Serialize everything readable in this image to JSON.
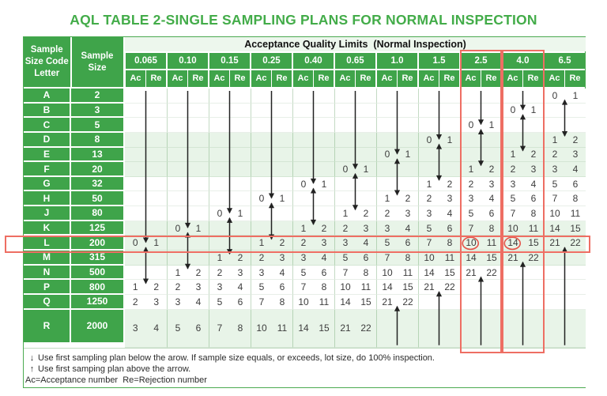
{
  "title": "AQL TABLE 2-SINGLE SAMPLING PLANS FOR NORMAL INSPECTION",
  "table": {
    "header": {
      "col1": "Sample\nSize Code\nLetter",
      "col2": "Sample\nSize",
      "aql_title": "Acceptance Quality Limits  (Normal Inspection)",
      "aql_levels": [
        "0.065",
        "0.10",
        "0.15",
        "0.25",
        "0.40",
        "0.65",
        "1.0",
        "1.5",
        "2.5",
        "4.0",
        "6.5"
      ],
      "ac_label": "Ac",
      "re_label": "Re"
    },
    "rows": [
      {
        "letter": "A",
        "size": "2",
        "cells": [
          null,
          null,
          null,
          null,
          null,
          null,
          null,
          null,
          null,
          null,
          [
            0,
            1
          ]
        ]
      },
      {
        "letter": "B",
        "size": "3",
        "cells": [
          null,
          null,
          null,
          null,
          null,
          null,
          null,
          null,
          null,
          [
            0,
            1
          ],
          null
        ]
      },
      {
        "letter": "C",
        "size": "5",
        "cells": [
          null,
          null,
          null,
          null,
          null,
          null,
          null,
          null,
          [
            0,
            1
          ],
          null,
          null
        ]
      },
      {
        "letter": "D",
        "size": "8",
        "cells": [
          null,
          null,
          null,
          null,
          null,
          null,
          null,
          [
            0,
            1
          ],
          null,
          null,
          [
            1,
            2
          ]
        ]
      },
      {
        "letter": "E",
        "size": "13",
        "cells": [
          null,
          null,
          null,
          null,
          null,
          null,
          [
            0,
            1
          ],
          null,
          null,
          [
            1,
            2
          ],
          [
            2,
            3
          ]
        ]
      },
      {
        "letter": "F",
        "size": "20",
        "cells": [
          null,
          null,
          null,
          null,
          null,
          [
            0,
            1
          ],
          null,
          null,
          [
            1,
            2
          ],
          [
            2,
            3
          ],
          [
            3,
            4
          ]
        ]
      },
      {
        "letter": "G",
        "size": "32",
        "cells": [
          null,
          null,
          null,
          null,
          [
            0,
            1
          ],
          null,
          null,
          [
            1,
            2
          ],
          [
            2,
            3
          ],
          [
            3,
            4
          ],
          [
            5,
            6
          ]
        ]
      },
      {
        "letter": "H",
        "size": "50",
        "cells": [
          null,
          null,
          null,
          [
            0,
            1
          ],
          null,
          null,
          [
            1,
            2
          ],
          [
            2,
            3
          ],
          [
            3,
            4
          ],
          [
            5,
            6
          ],
          [
            7,
            8
          ]
        ]
      },
      {
        "letter": "J",
        "size": "80",
        "cells": [
          null,
          null,
          [
            0,
            1
          ],
          null,
          null,
          [
            1,
            2
          ],
          [
            2,
            3
          ],
          [
            3,
            4
          ],
          [
            5,
            6
          ],
          [
            7,
            8
          ],
          [
            10,
            11
          ]
        ]
      },
      {
        "letter": "K",
        "size": "125",
        "cells": [
          null,
          [
            0,
            1
          ],
          null,
          null,
          [
            1,
            2
          ],
          [
            2,
            3
          ],
          [
            3,
            4
          ],
          [
            5,
            6
          ],
          [
            7,
            8
          ],
          [
            10,
            11
          ],
          [
            14,
            15
          ]
        ]
      },
      {
        "letter": "L",
        "size": "200",
        "cells": [
          [
            0,
            1
          ],
          null,
          null,
          [
            1,
            2
          ],
          [
            2,
            3
          ],
          [
            3,
            4
          ],
          [
            5,
            6
          ],
          [
            7,
            8
          ],
          [
            10,
            11
          ],
          [
            14,
            15
          ],
          [
            21,
            22
          ]
        ]
      },
      {
        "letter": "M",
        "size": "315",
        "cells": [
          null,
          null,
          [
            1,
            2
          ],
          [
            2,
            3
          ],
          [
            3,
            4
          ],
          [
            5,
            6
          ],
          [
            7,
            8
          ],
          [
            10,
            11
          ],
          [
            14,
            15
          ],
          [
            21,
            22
          ],
          null
        ]
      },
      {
        "letter": "N",
        "size": "500",
        "cells": [
          null,
          [
            1,
            2
          ],
          [
            2,
            3
          ],
          [
            3,
            4
          ],
          [
            5,
            6
          ],
          [
            7,
            8
          ],
          [
            10,
            11
          ],
          [
            14,
            15
          ],
          [
            21,
            22
          ],
          null,
          null
        ]
      },
      {
        "letter": "P",
        "size": "800",
        "cells": [
          [
            1,
            2
          ],
          [
            2,
            3
          ],
          [
            3,
            4
          ],
          [
            5,
            6
          ],
          [
            7,
            8
          ],
          [
            10,
            11
          ],
          [
            14,
            15
          ],
          [
            21,
            22
          ],
          null,
          null,
          null
        ]
      },
      {
        "letter": "Q",
        "size": "1250",
        "cells": [
          [
            2,
            3
          ],
          [
            3,
            4
          ],
          [
            5,
            6
          ],
          [
            7,
            8
          ],
          [
            10,
            11
          ],
          [
            14,
            15
          ],
          [
            21,
            22
          ],
          null,
          null,
          null,
          null
        ]
      },
      {
        "letter": "R",
        "size": "2000",
        "cells": [
          [
            3,
            4
          ],
          [
            5,
            6
          ],
          [
            7,
            8
          ],
          [
            10,
            11
          ],
          [
            14,
            15
          ],
          [
            21,
            22
          ],
          null,
          null,
          null,
          null,
          null
        ]
      }
    ],
    "arrows": {
      "down": [
        [
          0,
          10
        ],
        [
          1,
          9
        ],
        [
          2,
          8
        ],
        [
          3,
          7
        ],
        [
          4,
          6
        ],
        [
          5,
          5
        ],
        [
          6,
          4
        ],
        [
          7,
          3
        ],
        [
          8,
          2
        ],
        [
          9,
          1
        ]
      ],
      "double": [
        [
          0,
          11,
          12
        ],
        [
          1,
          10,
          11
        ],
        [
          2,
          9,
          10
        ],
        [
          3,
          8,
          9
        ],
        [
          4,
          7,
          8
        ],
        [
          5,
          6,
          7
        ],
        [
          6,
          5,
          6
        ],
        [
          7,
          4,
          5
        ],
        [
          8,
          3,
          4
        ],
        [
          9,
          2,
          3
        ],
        [
          10,
          1,
          2
        ]
      ],
      "up": [
        [
          6,
          15
        ],
        [
          7,
          14
        ],
        [
          8,
          13
        ],
        [
          9,
          12
        ],
        [
          10,
          11
        ]
      ]
    },
    "highlights": {
      "row_letter": "L",
      "row_index": 10,
      "column_levels": [
        "2.5",
        "4.0"
      ],
      "column_indices": [
        8,
        9
      ],
      "circled": [
        {
          "row": 10,
          "col": 8,
          "value": 10
        },
        {
          "row": 10,
          "col": 9,
          "value": 14
        }
      ]
    }
  },
  "footnotes": [
    {
      "icon": "↓",
      "icon_name": "down-arrow",
      "text": "Use first sampling plan below the arow. If sample size equals, or exceeds, lot size, do 100% inspection."
    },
    {
      "icon": "↑",
      "icon_name": "up-arrow",
      "text": "Use first samping plan above the arrow."
    },
    {
      "icon": "",
      "icon_name": "",
      "text": "Ac=Acceptance number  Re=Rejection number"
    }
  ],
  "colors": {
    "green": "#3FA44A",
    "title_green": "#43AC49",
    "pale_green": "#E8F4E8",
    "band_green": "#EDF7ED",
    "highlight_red": "#EE6E63",
    "circle_red": "#E4544A",
    "arrow_black": "#222222",
    "value_text": "#3C3C3C"
  }
}
